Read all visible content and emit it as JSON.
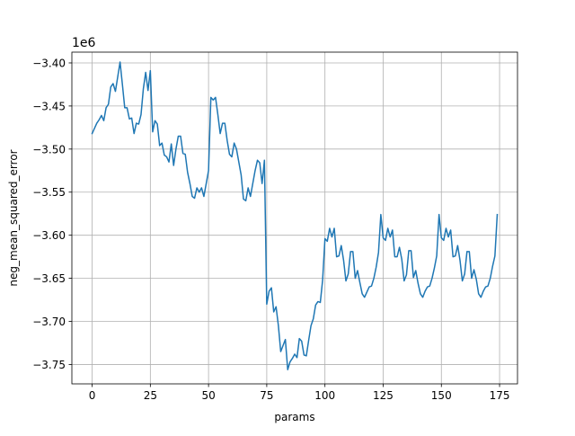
{
  "chart_data": {
    "type": "line",
    "title": "",
    "xlabel": "params",
    "ylabel": "neg_mean_squared_error",
    "offset_label": "1e6",
    "xlim": [
      -8.7,
      182.7
    ],
    "ylim": [
      -3.7725,
      -3.3875
    ],
    "xticks": [
      0,
      25,
      50,
      75,
      100,
      125,
      150,
      175
    ],
    "yticks": [
      -3.75,
      -3.7,
      -3.65,
      -3.6,
      -3.55,
      -3.5,
      -3.45,
      -3.4
    ],
    "xtick_labels": [
      "0",
      "25",
      "50",
      "75",
      "100",
      "125",
      "150",
      "175"
    ],
    "ytick_labels": [
      "−3.75",
      "−3.70",
      "−3.65",
      "−3.60",
      "−3.55",
      "−3.50",
      "−3.45",
      "−3.40"
    ],
    "grid": true,
    "line_color": "#1f77b4",
    "series": [
      {
        "name": "neg_mean_squared_error",
        "x_start": 0,
        "x_step": 1,
        "values": [
          -3.482,
          -3.476,
          -3.47,
          -3.466,
          -3.461,
          -3.467,
          -3.452,
          -3.448,
          -3.428,
          -3.424,
          -3.433,
          -3.416,
          -3.399,
          -3.425,
          -3.452,
          -3.452,
          -3.465,
          -3.464,
          -3.482,
          -3.47,
          -3.471,
          -3.46,
          -3.43,
          -3.411,
          -3.432,
          -3.409,
          -3.48,
          -3.467,
          -3.471,
          -3.496,
          -3.493,
          -3.507,
          -3.509,
          -3.515,
          -3.494,
          -3.519,
          -3.5,
          -3.485,
          -3.485,
          -3.505,
          -3.506,
          -3.527,
          -3.54,
          -3.555,
          -3.557,
          -3.545,
          -3.55,
          -3.545,
          -3.555,
          -3.54,
          -3.525,
          -3.44,
          -3.443,
          -3.44,
          -3.46,
          -3.482,
          -3.47,
          -3.47,
          -3.49,
          -3.506,
          -3.509,
          -3.493,
          -3.5,
          -3.515,
          -3.53,
          -3.558,
          -3.56,
          -3.545,
          -3.555,
          -3.54,
          -3.525,
          -3.513,
          -3.516,
          -3.54,
          -3.513,
          -3.68,
          -3.665,
          -3.661,
          -3.689,
          -3.683,
          -3.705,
          -3.735,
          -3.728,
          -3.721,
          -3.756,
          -3.747,
          -3.743,
          -3.738,
          -3.742,
          -3.72,
          -3.723,
          -3.739,
          -3.74,
          -3.722,
          -3.705,
          -3.697,
          -3.681,
          -3.677,
          -3.678,
          -3.652,
          -3.604,
          -3.607,
          -3.592,
          -3.602,
          -3.592,
          -3.625,
          -3.624,
          -3.612,
          -3.629,
          -3.653,
          -3.645,
          -3.619,
          -3.619,
          -3.65,
          -3.641,
          -3.655,
          -3.668,
          -3.672,
          -3.666,
          -3.66,
          -3.659,
          -3.65,
          -3.637,
          -3.62,
          -3.576,
          -3.603,
          -3.606,
          -3.592,
          -3.602,
          -3.594,
          -3.625,
          -3.625,
          -3.614,
          -3.628,
          -3.653,
          -3.646,
          -3.618,
          -3.618,
          -3.649,
          -3.641,
          -3.656,
          -3.668,
          -3.672,
          -3.665,
          -3.66,
          -3.659,
          -3.65,
          -3.638,
          -3.624,
          -3.576,
          -3.603,
          -3.606,
          -3.592,
          -3.602,
          -3.594,
          -3.625,
          -3.624,
          -3.612,
          -3.629,
          -3.653,
          -3.645,
          -3.619,
          -3.619,
          -3.65,
          -3.64,
          -3.651,
          -3.668,
          -3.672,
          -3.665,
          -3.66,
          -3.659,
          -3.65,
          -3.636,
          -3.624,
          -3.576
        ]
      }
    ]
  }
}
